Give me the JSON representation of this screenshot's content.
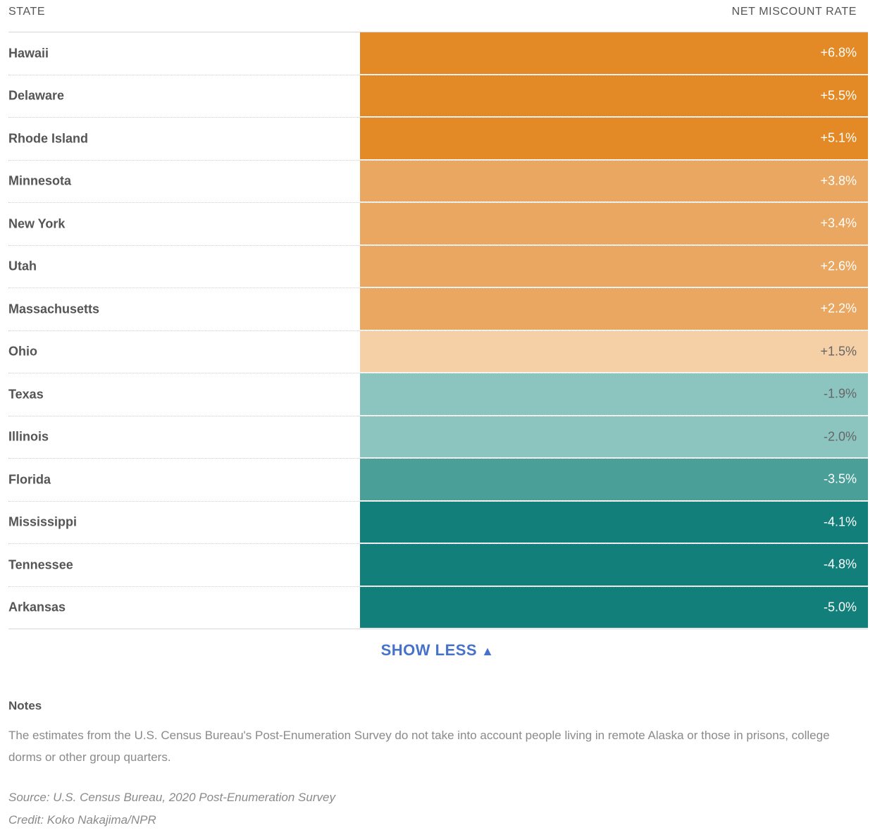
{
  "header": {
    "state_label": "STATE",
    "rate_label": "NET MISCOUNT RATE"
  },
  "colors": {
    "overcount_high": "#e38a26",
    "overcount_mid": "#eaa761",
    "overcount_low": "#f5cfa5",
    "undercount_low": "#8cc4c0",
    "undercount_mid": "#4a9f99",
    "undercount_high": "#127f7a",
    "show_less": "#4673c9"
  },
  "rows": [
    {
      "state": "Hawaii",
      "rate": "+6.8%",
      "value": 6.8,
      "color": "#e38a26",
      "text_color": "#ffffff"
    },
    {
      "state": "Delaware",
      "rate": "+5.5%",
      "value": 5.5,
      "color": "#e38a26",
      "text_color": "#ffffff"
    },
    {
      "state": "Rhode Island",
      "rate": "+5.1%",
      "value": 5.1,
      "color": "#e38a26",
      "text_color": "#ffffff"
    },
    {
      "state": "Minnesota",
      "rate": "+3.8%",
      "value": 3.8,
      "color": "#eaa761",
      "text_color": "#ffffff"
    },
    {
      "state": "New York",
      "rate": "+3.4%",
      "value": 3.4,
      "color": "#eaa761",
      "text_color": "#ffffff"
    },
    {
      "state": "Utah",
      "rate": "+2.6%",
      "value": 2.6,
      "color": "#eaa761",
      "text_color": "#ffffff"
    },
    {
      "state": "Massachusetts",
      "rate": "+2.2%",
      "value": 2.2,
      "color": "#eaa761",
      "text_color": "#ffffff"
    },
    {
      "state": "Ohio",
      "rate": "+1.5%",
      "value": 1.5,
      "color": "#f5cfa5",
      "text_color": "#666666"
    },
    {
      "state": "Texas",
      "rate": "-1.9%",
      "value": -1.9,
      "color": "#8cc4c0",
      "text_color": "#666666"
    },
    {
      "state": "Illinois",
      "rate": "-2.0%",
      "value": -2.0,
      "color": "#8cc4c0",
      "text_color": "#666666"
    },
    {
      "state": "Florida",
      "rate": "-3.5%",
      "value": -3.5,
      "color": "#4a9f99",
      "text_color": "#ffffff"
    },
    {
      "state": "Mississippi",
      "rate": "-4.1%",
      "value": -4.1,
      "color": "#127f7a",
      "text_color": "#ffffff"
    },
    {
      "state": "Tennessee",
      "rate": "-4.8%",
      "value": -4.8,
      "color": "#127f7a",
      "text_color": "#ffffff"
    },
    {
      "state": "Arkansas",
      "rate": "-5.0%",
      "value": -5.0,
      "color": "#127f7a",
      "text_color": "#ffffff"
    }
  ],
  "toggle": {
    "label": "SHOW LESS",
    "arrow": "▲"
  },
  "notes": {
    "title": "Notes",
    "text": "The estimates from the U.S. Census Bureau's Post-Enumeration Survey do not take into account people living in remote Alaska or those in prisons, college dorms or other group quarters.",
    "source": "Source: U.S. Census Bureau, 2020 Post-Enumeration Survey",
    "credit": "Credit: Koko Nakajima/NPR"
  }
}
